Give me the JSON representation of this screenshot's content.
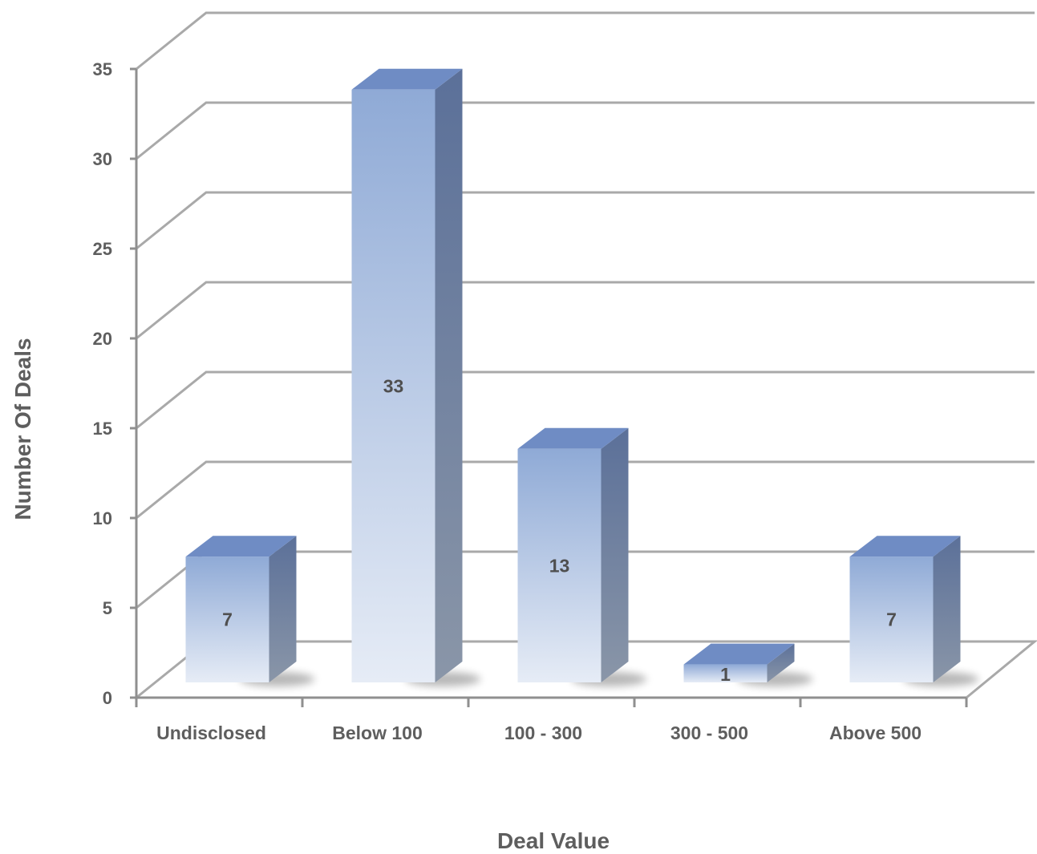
{
  "chart_data": {
    "type": "bar",
    "style": "3d-column",
    "title": "",
    "xlabel": "Deal Value",
    "ylabel": "Number Of Deals",
    "categories": [
      "Undisclosed",
      "Below 100",
      "100 - 300",
      "300 - 500",
      "Above 500"
    ],
    "values": [
      7,
      33,
      13,
      1,
      7
    ],
    "data_labels": [
      "7",
      "33",
      "13",
      "1",
      "7"
    ],
    "ylim": [
      0,
      35
    ],
    "yticks": [
      0,
      5,
      10,
      15,
      20,
      25,
      30,
      35
    ],
    "grid": true,
    "legend": "none",
    "colors": {
      "bar_top": "#6f8cc4",
      "bar_front_top": "#8faad6",
      "bar_front_bottom": "#e6ecf6",
      "bar_side_top": "#5b7099",
      "bar_side_bottom": "#8a96a8"
    }
  }
}
